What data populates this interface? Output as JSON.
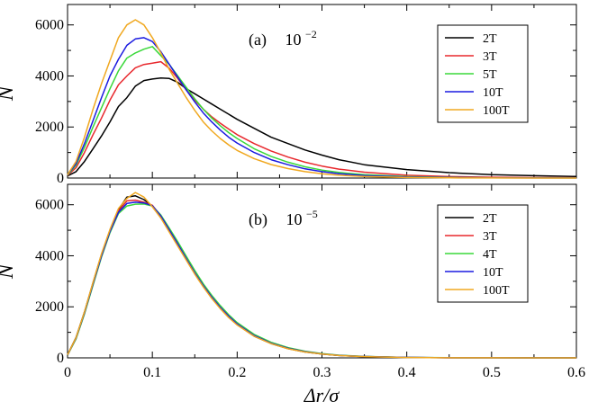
{
  "chart_data": [
    {
      "type": "line",
      "panel_label": "(a)",
      "annotation_base": "10",
      "annotation_exponent": "−2",
      "ylabel": "N",
      "xlim": [
        0,
        0.6
      ],
      "ylim": [
        0,
        6800
      ],
      "yticks": [
        0,
        2000,
        4000,
        6000
      ],
      "ytick_labels": [
        "0",
        "2000",
        "4000",
        "6000"
      ],
      "legend_position": "top-right",
      "x": [
        0,
        0.01,
        0.02,
        0.03,
        0.04,
        0.05,
        0.06,
        0.07,
        0.08,
        0.09,
        0.1,
        0.11,
        0.12,
        0.13,
        0.14,
        0.15,
        0.16,
        0.17,
        0.18,
        0.19,
        0.2,
        0.22,
        0.24,
        0.26,
        0.28,
        0.3,
        0.32,
        0.35,
        0.4,
        0.45,
        0.5,
        0.55,
        0.6
      ],
      "series": [
        {
          "name": "2T",
          "color": "#000000",
          "values": [
            80,
            250,
            650,
            1150,
            1650,
            2200,
            2800,
            3150,
            3600,
            3820,
            3880,
            3920,
            3900,
            3750,
            3500,
            3300,
            3100,
            2900,
            2700,
            2500,
            2300,
            1950,
            1600,
            1350,
            1100,
            900,
            720,
            520,
            330,
            210,
            130,
            90,
            60
          ]
        },
        {
          "name": "3T",
          "color": "#e8282d",
          "values": [
            100,
            400,
            1000,
            1700,
            2350,
            3050,
            3650,
            4000,
            4320,
            4450,
            4500,
            4560,
            4300,
            3900,
            3450,
            3050,
            2700,
            2400,
            2150,
            1920,
            1700,
            1350,
            1060,
            820,
            620,
            470,
            350,
            230,
            110,
            55,
            30,
            18,
            12
          ]
        },
        {
          "name": "5T",
          "color": "#3ad83a",
          "values": [
            110,
            500,
            1200,
            2000,
            2750,
            3500,
            4200,
            4700,
            4900,
            5050,
            5150,
            4800,
            4450,
            4000,
            3550,
            3100,
            2700,
            2350,
            2050,
            1780,
            1550,
            1150,
            850,
            620,
            440,
            310,
            220,
            130,
            55,
            25,
            12,
            6,
            3
          ]
        },
        {
          "name": "10T",
          "color": "#1a1ae0",
          "values": [
            120,
            560,
            1350,
            2250,
            3150,
            4000,
            4650,
            5200,
            5450,
            5500,
            5350,
            4950,
            4450,
            3950,
            3450,
            2980,
            2550,
            2200,
            1880,
            1600,
            1370,
            1000,
            720,
            520,
            360,
            250,
            170,
            100,
            40,
            18,
            8,
            4,
            2
          ]
        },
        {
          "name": "100T",
          "color": "#f0a820",
          "values": [
            130,
            650,
            1600,
            2700,
            3700,
            4600,
            5500,
            6000,
            6200,
            6000,
            5500,
            4900,
            4250,
            3700,
            3150,
            2650,
            2200,
            1850,
            1550,
            1300,
            1080,
            760,
            530,
            370,
            250,
            170,
            110,
            60,
            22,
            8,
            3,
            1,
            0
          ]
        }
      ]
    },
    {
      "type": "line",
      "panel_label": "(b)",
      "annotation_base": "10",
      "annotation_exponent": "−5",
      "ylabel": "N",
      "xlabel_main": "Δr",
      "xlabel_sigma": "σ",
      "xlim": [
        0,
        0.6
      ],
      "ylim": [
        0,
        6800
      ],
      "yticks": [
        0,
        2000,
        4000,
        6000
      ],
      "ytick_labels": [
        "0",
        "2000",
        "4000",
        "6000"
      ],
      "xticks": [
        0,
        0.1,
        0.2,
        0.3,
        0.4,
        0.5,
        0.6
      ],
      "xtick_labels": [
        "0",
        "0.1",
        "0.2",
        "0.3",
        "0.4",
        "0.5",
        "0.6"
      ],
      "legend_position": "top-right",
      "x": [
        0,
        0.01,
        0.02,
        0.03,
        0.04,
        0.05,
        0.06,
        0.07,
        0.08,
        0.09,
        0.1,
        0.11,
        0.12,
        0.13,
        0.14,
        0.15,
        0.16,
        0.17,
        0.18,
        0.19,
        0.2,
        0.22,
        0.24,
        0.26,
        0.28,
        0.3,
        0.32,
        0.35,
        0.4,
        0.45,
        0.5,
        0.55,
        0.6
      ],
      "series": [
        {
          "name": "2T",
          "color": "#000000",
          "values": [
            120,
            800,
            1800,
            2950,
            4050,
            5000,
            5800,
            6300,
            6350,
            6200,
            5950,
            5500,
            4950,
            4400,
            3850,
            3300,
            2800,
            2350,
            1950,
            1600,
            1300,
            850,
            560,
            360,
            230,
            150,
            90,
            50,
            15,
            5,
            2,
            1,
            0
          ]
        },
        {
          "name": "3T",
          "color": "#e8282d",
          "values": [
            110,
            760,
            1750,
            2900,
            4000,
            4980,
            5750,
            6150,
            6180,
            6100,
            5980,
            5550,
            5000,
            4450,
            3880,
            3320,
            2820,
            2370,
            1970,
            1620,
            1320,
            870,
            570,
            370,
            240,
            155,
            95,
            52,
            16,
            5,
            2,
            1,
            0
          ]
        },
        {
          "name": "4T",
          "color": "#3ad83a",
          "values": [
            110,
            740,
            1720,
            2850,
            3950,
            4900,
            5650,
            5950,
            6020,
            6030,
            5950,
            5600,
            5080,
            4550,
            3980,
            3420,
            2900,
            2450,
            2050,
            1690,
            1380,
            920,
            610,
            400,
            260,
            170,
            105,
            58,
            18,
            6,
            2,
            1,
            0
          ]
        },
        {
          "name": "10T",
          "color": "#1a1ae0",
          "values": [
            115,
            770,
            1760,
            2900,
            4000,
            4950,
            5700,
            6050,
            6100,
            6070,
            5960,
            5560,
            5010,
            4460,
            3890,
            3330,
            2830,
            2380,
            1980,
            1630,
            1330,
            875,
            575,
            372,
            242,
            156,
            96,
            52,
            16,
            5,
            2,
            1,
            0
          ]
        },
        {
          "name": "100T",
          "color": "#f0a820",
          "values": [
            120,
            790,
            1800,
            2960,
            4080,
            5030,
            5850,
            6250,
            6480,
            6300,
            5920,
            5480,
            4930,
            4380,
            3830,
            3280,
            2780,
            2330,
            1930,
            1580,
            1290,
            845,
            555,
            356,
            228,
            148,
            90,
            49,
            15,
            5,
            2,
            1,
            0
          ]
        }
      ]
    }
  ]
}
